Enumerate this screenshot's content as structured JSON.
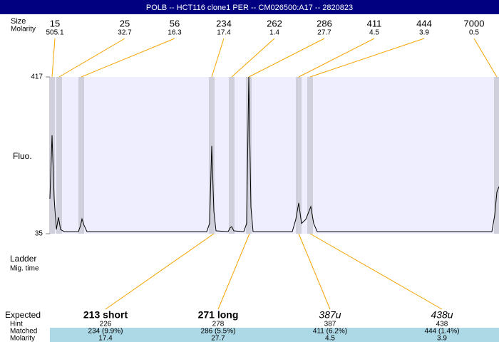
{
  "header": {
    "title": "POLB -- HCT116 clone1 PER -- CM026500:A17 -- 2820823"
  },
  "ladder": {
    "row_labels": [
      "Size",
      "Molarity"
    ],
    "sizes": [
      15,
      25,
      56,
      234,
      262,
      286,
      411,
      444,
      7000
    ],
    "molarity": [
      505.1,
      32.7,
      16.3,
      17.4,
      1.4,
      27.7,
      4.5,
      3.9,
      0.5
    ]
  },
  "chart_data": {
    "type": "line",
    "ylabel": "Fluo.",
    "ylim": [
      35,
      417
    ],
    "yticks": [
      35,
      417
    ],
    "xlim": [
      0,
      630
    ],
    "x": [
      0,
      3,
      6,
      9,
      12,
      15,
      20,
      40,
      43,
      45,
      48,
      52,
      220,
      224,
      227,
      230,
      233,
      250,
      253,
      255,
      258,
      272,
      276,
      279,
      282,
      285,
      340,
      345,
      349,
      353,
      359,
      366,
      370,
      375,
      620,
      624,
      627,
      630
    ],
    "series": [
      {
        "color": "#000000",
        "values": [
          120,
          275,
          120,
          45,
          75,
          45,
          40,
          40,
          55,
          71,
          55,
          40,
          40,
          60,
          249,
          90,
          42,
          40,
          50,
          52,
          42,
          40,
          60,
          417,
          100,
          40,
          40,
          70,
          110,
          60,
          70,
          101,
          60,
          40,
          40,
          80,
          136,
          150
        ]
      }
    ]
  },
  "lane": {
    "labels": [
      "Ladder",
      "Mig. time"
    ]
  },
  "results": {
    "row_labels": [
      "Expected",
      "Hint",
      "Matched",
      "Molarity"
    ],
    "expected": [
      "213 short",
      "271 long",
      "387u",
      "438u"
    ],
    "hint": [
      226,
      278,
      387,
      438
    ],
    "matched": [
      "234 (9.9%)",
      "286 (5.5%)",
      "411 (6.2%)",
      "444 (1.4%)"
    ],
    "molarity": [
      17.4,
      27.7,
      4.5,
      3.9
    ]
  }
}
